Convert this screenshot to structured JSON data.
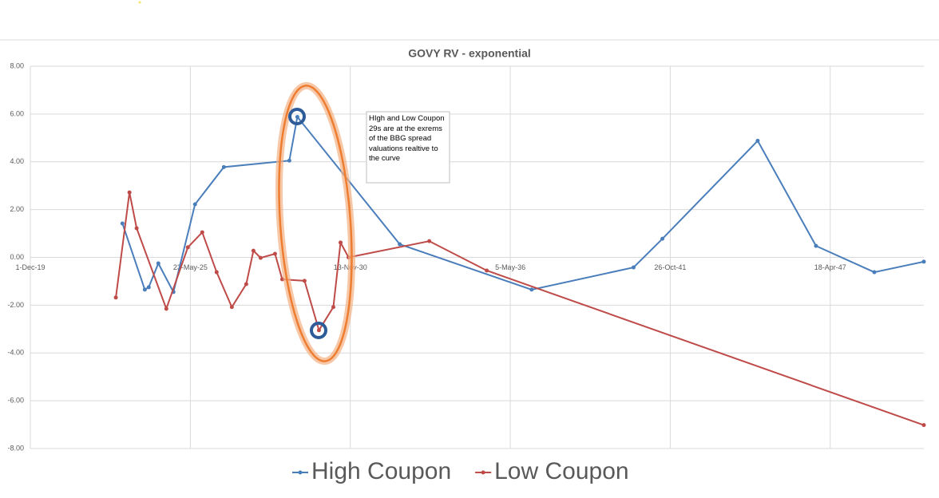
{
  "chart_data": {
    "type": "line",
    "title": "GOVY RV - exponential",
    "annotation": "HIgh and Low Coupon 29s are at the exrems of the BBG spread valuations realtive to the curve",
    "xlim": [
      "2019-12-01",
      "2050-07-01"
    ],
    "xticks": [
      {
        "value": "2019-12-01",
        "label": "1-Dec-19"
      },
      {
        "value": "2025-05-23",
        "label": "23-May-25"
      },
      {
        "value": "2030-11-13",
        "label": "13-Nov-30"
      },
      {
        "value": "2036-05-05",
        "label": "5-May-36"
      },
      {
        "value": "2041-10-26",
        "label": "26-Oct-41"
      },
      {
        "value": "2047-04-18",
        "label": "18-Apr-47"
      }
    ],
    "ylim": [
      -8,
      8
    ],
    "yticks": [
      {
        "value": 8,
        "label": "8.00"
      },
      {
        "value": 6,
        "label": "6.00"
      },
      {
        "value": 4,
        "label": "4.00"
      },
      {
        "value": 2,
        "label": "2.00"
      },
      {
        "value": 0,
        "label": "0.00"
      },
      {
        "value": -2,
        "label": "-2.00"
      },
      {
        "value": -4,
        "label": "-4.00"
      },
      {
        "value": -6,
        "label": "-6.00"
      },
      {
        "value": -8,
        "label": "-8.00"
      }
    ],
    "grid": true,
    "legend": "bottom",
    "series": [
      {
        "name": "High Coupon",
        "color": "#4a7ebb",
        "x": [
          "2023-01-25",
          "2023-11-01",
          "2023-12-20",
          "2024-04-18",
          "2024-10-24",
          "2025-07-21",
          "2026-07-16",
          "2028-10-12",
          "2029-01-20",
          "2032-07-23",
          "2037-01-27",
          "2040-07-24",
          "2041-07-20",
          "2044-10-23",
          "2046-10-22",
          "2048-10-20",
          "2050-07-01"
        ],
        "values": [
          1.42,
          -1.35,
          -1.25,
          -0.25,
          -1.45,
          2.22,
          3.78,
          4.05,
          5.88,
          0.55,
          -1.35,
          -0.42,
          0.78,
          4.88,
          0.48,
          -0.62,
          -0.18
        ]
      },
      {
        "name": "Low Coupon",
        "color": "#be4b48",
        "x": [
          "2022-11-04",
          "2023-04-23",
          "2023-07-22",
          "2024-07-27",
          "2025-04-22",
          "2025-10-19",
          "2026-04-17",
          "2026-10-24",
          "2027-04-22",
          "2027-07-21",
          "2027-10-19",
          "2028-04-16",
          "2028-07-15",
          "2029-04-20",
          "2029-10-17",
          "2030-04-15",
          "2030-07-14",
          "2030-10-22",
          "2033-07-27",
          "2035-07-16",
          "2050-07-01"
        ],
        "values": [
          -1.68,
          2.72,
          1.22,
          -2.15,
          0.42,
          1.05,
          -0.62,
          -2.08,
          -1.12,
          0.28,
          -0.02,
          0.15,
          -0.92,
          -0.98,
          -3.05,
          -2.08,
          0.62,
          0.0,
          0.68,
          -0.55,
          -7.02
        ]
      }
    ]
  }
}
